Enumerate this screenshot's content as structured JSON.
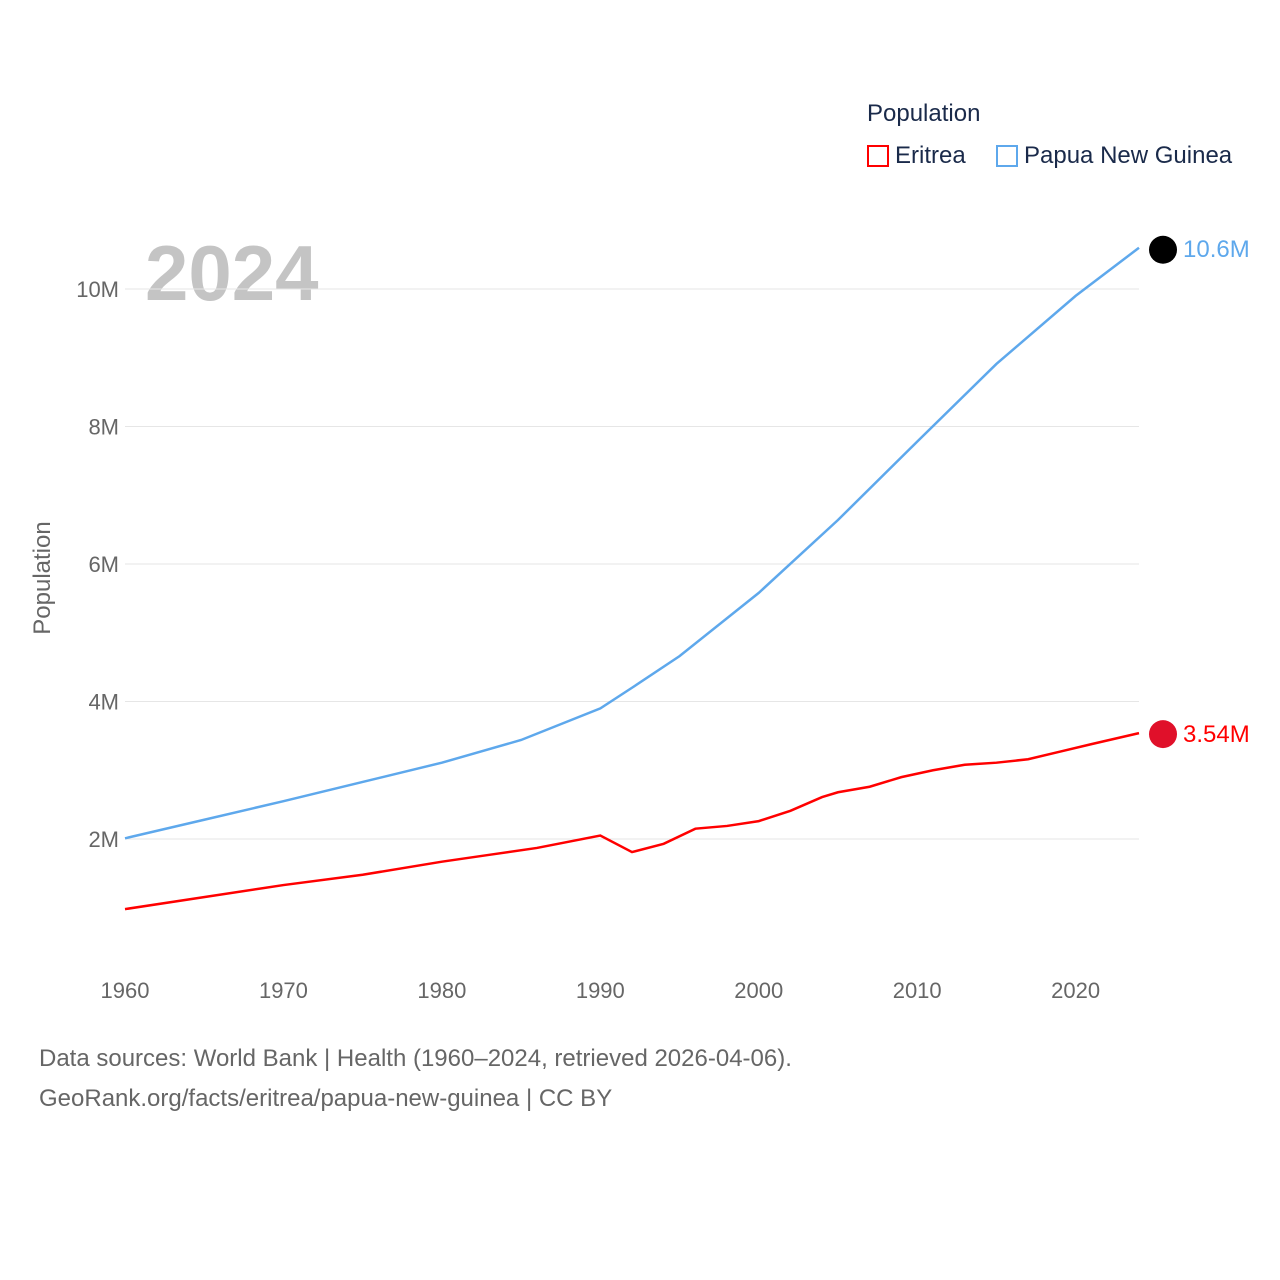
{
  "chart_data": {
    "type": "line",
    "title": "Population",
    "ylabel": "Population",
    "xlabel": "",
    "year_label": "2024",
    "xlim": [
      1960,
      2024
    ],
    "ylim": [
      0,
      11000000
    ],
    "xticks": [
      "1960",
      "1970",
      "1980",
      "1990",
      "2000",
      "2010",
      "2020"
    ],
    "yticks": [
      {
        "v": 2000000,
        "label": "2M"
      },
      {
        "v": 4000000,
        "label": "4M"
      },
      {
        "v": 6000000,
        "label": "6M"
      },
      {
        "v": 8000000,
        "label": "8M"
      },
      {
        "v": 10000000,
        "label": "10M"
      }
    ],
    "grid": true,
    "legend_position": "top-right",
    "series": [
      {
        "name": "Eritrea",
        "color": "#ff0000",
        "end_label": "3.54M",
        "x": [
          1960,
          1970,
          1975,
          1980,
          1983,
          1986,
          1990,
          1992,
          1994,
          1996,
          1998,
          2000,
          2002,
          2004,
          2005,
          2007,
          2009,
          2011,
          2013,
          2015,
          2017,
          2019,
          2021,
          2024
        ],
        "y": [
          0.98,
          1.33,
          1.48,
          1.67,
          1.77,
          1.87,
          2.05,
          1.81,
          1.93,
          2.15,
          2.19,
          2.26,
          2.41,
          2.61,
          2.68,
          2.76,
          2.9,
          3.0,
          3.08,
          3.11,
          3.16,
          3.27,
          3.38,
          3.54
        ]
      },
      {
        "name": "Papua New Guinea",
        "color": "#5ea8ec",
        "end_label": "10.6M",
        "x": [
          1960,
          1965,
          1970,
          1975,
          1980,
          1985,
          1990,
          1992,
          1995,
          2000,
          2005,
          2010,
          2015,
          2020,
          2024
        ],
        "y": [
          2.01,
          2.28,
          2.55,
          2.83,
          3.11,
          3.44,
          3.9,
          4.2,
          4.66,
          5.58,
          6.64,
          7.78,
          8.91,
          9.9,
          10.6
        ]
      }
    ]
  },
  "footer": {
    "line1": "Data sources: World Bank | Health (1960–2024, retrieved 2026-04-06).",
    "line2": "GeoRank.org/facts/eritrea/papua-new-guinea | CC BY"
  }
}
